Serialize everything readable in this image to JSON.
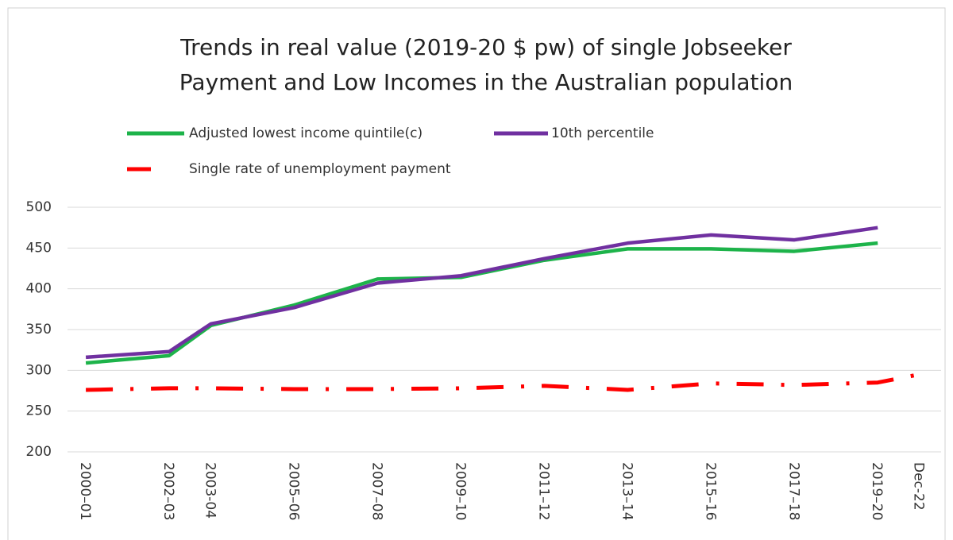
{
  "chart_data": {
    "type": "line",
    "title": "Trends in real value (2019-20 $ pw) of single Jobseeker Payment and Low Incomes in the Australian population",
    "x": [
      2000,
      2002,
      2003,
      2005,
      2007,
      2009,
      2011,
      2013,
      2015,
      2017,
      2019,
      2020
    ],
    "xlim": [
      1999.56,
      2020.52
    ],
    "xticks": [
      {
        "value": 2000,
        "label": "2000–01"
      },
      {
        "value": 2002,
        "label": "2002–03"
      },
      {
        "value": 2003,
        "label": "2003-04"
      },
      {
        "value": 2005,
        "label": "2005–06"
      },
      {
        "value": 2007,
        "label": "2007–08"
      },
      {
        "value": 2009,
        "label": "2009–10"
      },
      {
        "value": 2011,
        "label": "2011–12"
      },
      {
        "value": 2013,
        "label": "2013–14"
      },
      {
        "value": 2015,
        "label": "2015–16"
      },
      {
        "value": 2017,
        "label": "2017–18"
      },
      {
        "value": 2019,
        "label": "2019–20"
      },
      {
        "value": 2020,
        "label": "Dec-22"
      }
    ],
    "series": [
      {
        "name": "Adjusted lowest income quintile(c)",
        "color": "#1db34a",
        "style": "solid",
        "values": [
          309,
          318,
          355,
          380,
          412,
          414,
          435,
          449,
          449,
          446,
          456,
          null
        ]
      },
      {
        "name": "10th percentile",
        "color": "#7030a0",
        "style": "solid",
        "values": [
          316,
          323,
          357,
          377,
          407,
          416,
          437,
          456,
          466,
          460,
          475,
          null
        ]
      },
      {
        "name": "Single rate of unemployment payment",
        "color": "#ff0000",
        "style": "dashdot",
        "values": [
          276,
          278,
          278,
          277,
          277,
          278,
          281,
          276,
          284,
          282,
          285,
          295
        ]
      }
    ],
    "ylim": [
      200,
      500
    ],
    "yticks": [
      200,
      250,
      300,
      350,
      400,
      450,
      500
    ],
    "grid": true
  }
}
